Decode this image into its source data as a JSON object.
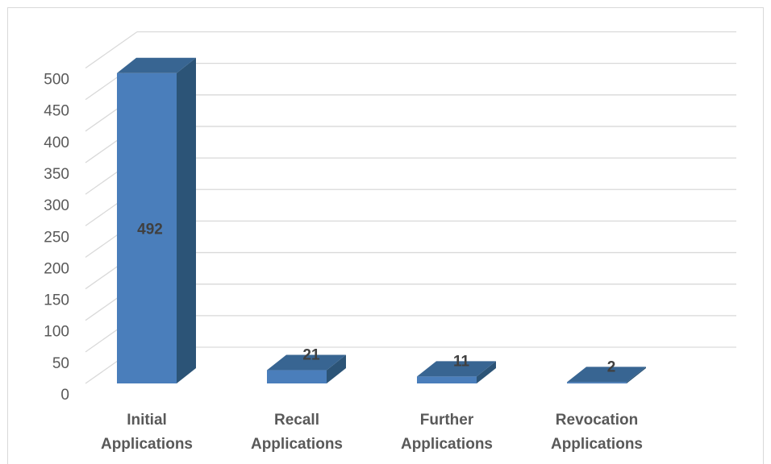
{
  "chart_data": {
    "type": "bar",
    "style": "3d-column",
    "categories": [
      [
        "Initial",
        "Applications"
      ],
      [
        "Recall",
        "Applications"
      ],
      [
        "Further",
        "Applications"
      ],
      [
        "Revocation",
        "Applications"
      ]
    ],
    "values": [
      492,
      21,
      11,
      2
    ],
    "data_labels": [
      "492",
      "21",
      "11",
      "2"
    ],
    "ylim": [
      0,
      500
    ],
    "y_ticks": [
      "0",
      "50",
      "100",
      "150",
      "200",
      "250",
      "300",
      "350",
      "400",
      "450",
      "500"
    ],
    "grid": true,
    "legend": "none",
    "colors": {
      "bar_front": "#4a7ebb",
      "bar_side": "#2c5477",
      "bar_top": "#386592",
      "grid": "#d9d9d9",
      "text": "#595959"
    }
  }
}
